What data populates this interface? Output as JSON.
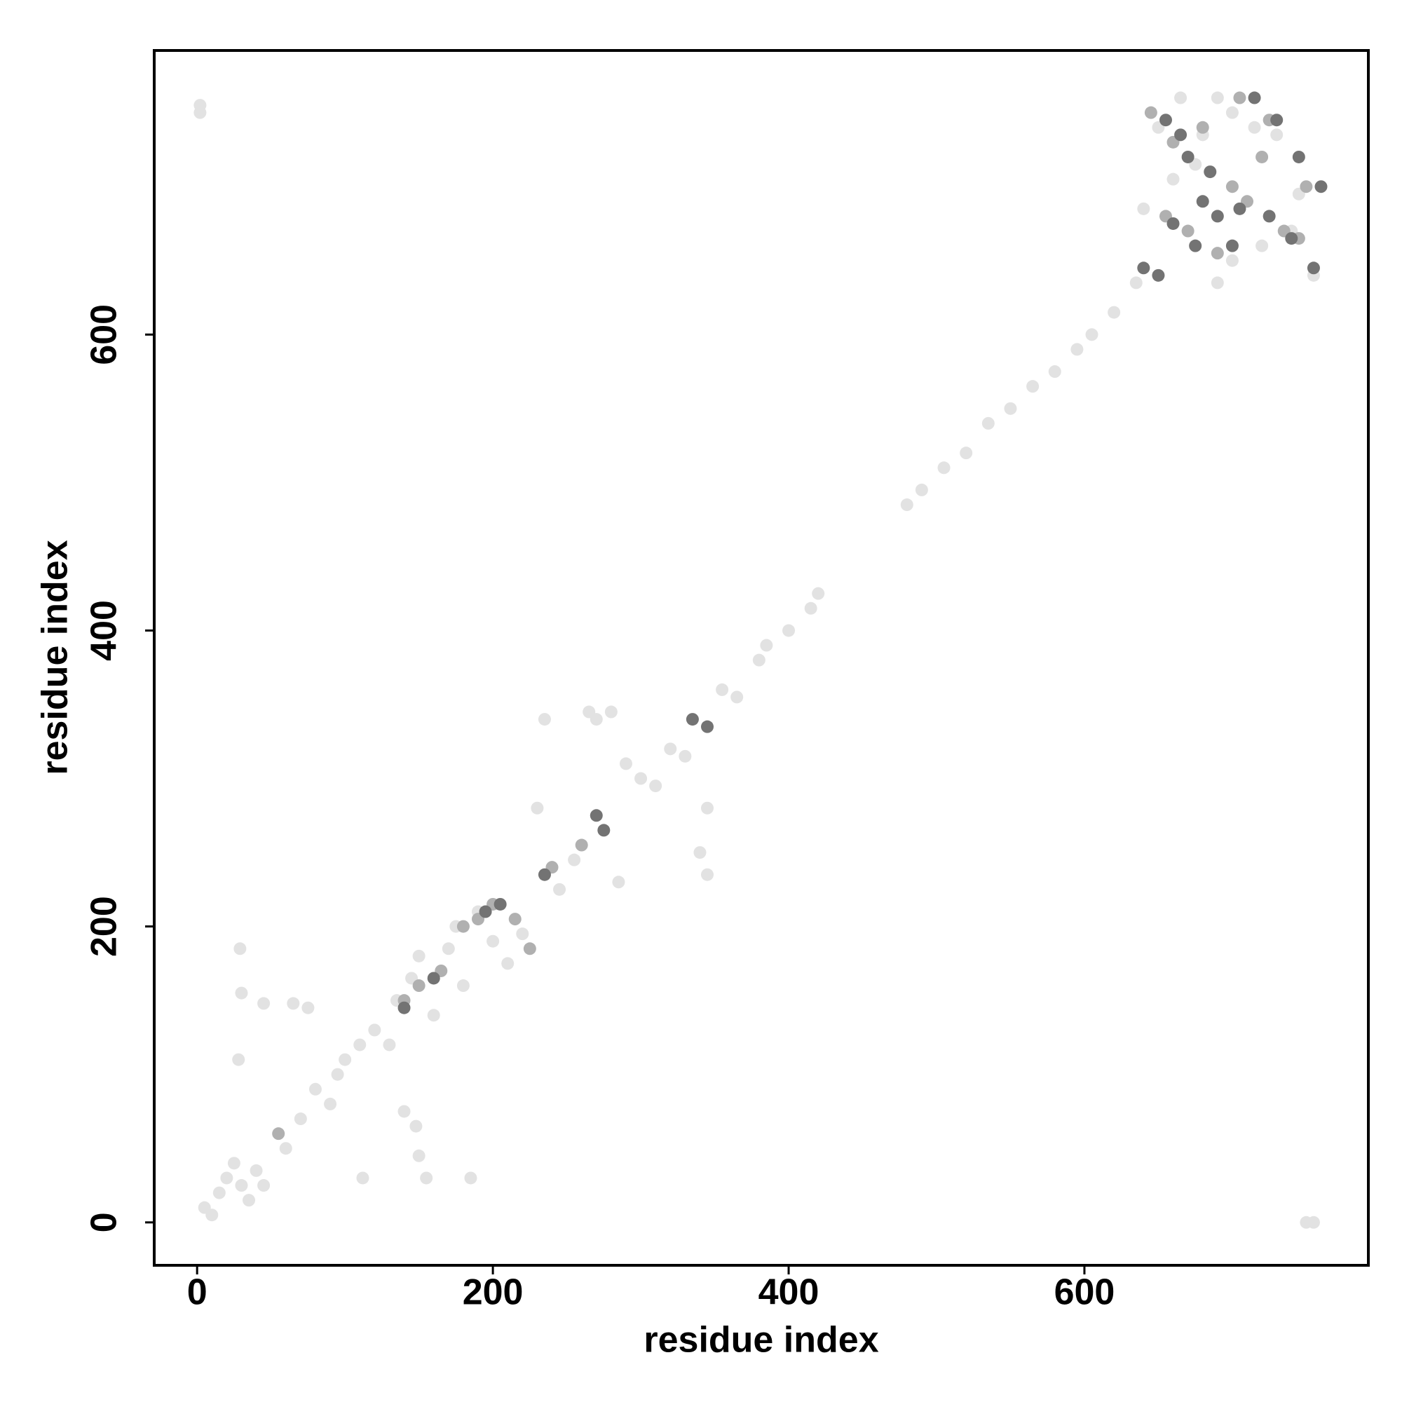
{
  "chart_data": {
    "type": "scatter",
    "xlabel": "residue index",
    "ylabel": "residue index",
    "xlim": [
      -29,
      792
    ],
    "ylim": [
      -29,
      792
    ],
    "xticks": [
      0,
      200,
      400,
      600
    ],
    "yticks": [
      0,
      200,
      400,
      600
    ],
    "series": [
      {
        "color": "#e2e2e2",
        "x": [
          2,
          2,
          750,
          755,
          29,
          30,
          28,
          45,
          65,
          75,
          112,
          150,
          155,
          185,
          140,
          148,
          5,
          10,
          15,
          20,
          25,
          30,
          35,
          40,
          45,
          60,
          70,
          80,
          90,
          95,
          100,
          110,
          120,
          130,
          135,
          145,
          150,
          160,
          170,
          175,
          180,
          190,
          200,
          210,
          220,
          230,
          235,
          245,
          255,
          265,
          270,
          280,
          285,
          290,
          300,
          310,
          320,
          330,
          345,
          340,
          345,
          355,
          365,
          380,
          385,
          400,
          415,
          420,
          480,
          490,
          505,
          520,
          535,
          550,
          565,
          580,
          595,
          605,
          620,
          635,
          640,
          650,
          660,
          675,
          690,
          700,
          715,
          730,
          745,
          755,
          665,
          680,
          700,
          720,
          740,
          690
        ],
        "values": [
          755,
          750,
          0,
          0,
          185,
          155,
          110,
          148,
          148,
          145,
          30,
          45,
          30,
          30,
          75,
          65,
          10,
          5,
          20,
          30,
          40,
          25,
          15,
          35,
          25,
          50,
          70,
          90,
          80,
          100,
          110,
          120,
          130,
          120,
          150,
          165,
          180,
          140,
          185,
          200,
          160,
          210,
          190,
          175,
          195,
          280,
          340,
          225,
          245,
          345,
          340,
          345,
          230,
          310,
          300,
          295,
          320,
          315,
          280,
          250,
          235,
          360,
          355,
          380,
          390,
          400,
          415,
          425,
          485,
          495,
          510,
          520,
          540,
          550,
          565,
          575,
          590,
          600,
          615,
          635,
          685,
          740,
          705,
          715,
          760,
          750,
          740,
          735,
          695,
          640,
          760,
          735,
          650,
          660,
          670,
          635
        ]
      },
      {
        "color": "#b0b0b0",
        "x": [
          55,
          140,
          150,
          165,
          180,
          190,
          200,
          215,
          225,
          240,
          260,
          645,
          660,
          680,
          700,
          720,
          745,
          655,
          670,
          690,
          710,
          735,
          750,
          705,
          725
        ],
        "values": [
          60,
          150,
          160,
          170,
          200,
          205,
          215,
          205,
          185,
          240,
          255,
          750,
          730,
          740,
          700,
          720,
          665,
          680,
          670,
          655,
          690,
          670,
          700,
          760,
          745
        ]
      },
      {
        "color": "#737373",
        "x": [
          140,
          160,
          195,
          205,
          235,
          270,
          275,
          335,
          345,
          640,
          650,
          655,
          665,
          680,
          690,
          700,
          715,
          730,
          745,
          760,
          670,
          685,
          705,
          725,
          740,
          755,
          660,
          675
        ],
        "values": [
          145,
          165,
          210,
          215,
          235,
          275,
          265,
          340,
          335,
          645,
          640,
          745,
          735,
          690,
          680,
          660,
          760,
          745,
          720,
          700,
          720,
          710,
          685,
          680,
          665,
          645,
          675,
          660
        ]
      }
    ]
  }
}
